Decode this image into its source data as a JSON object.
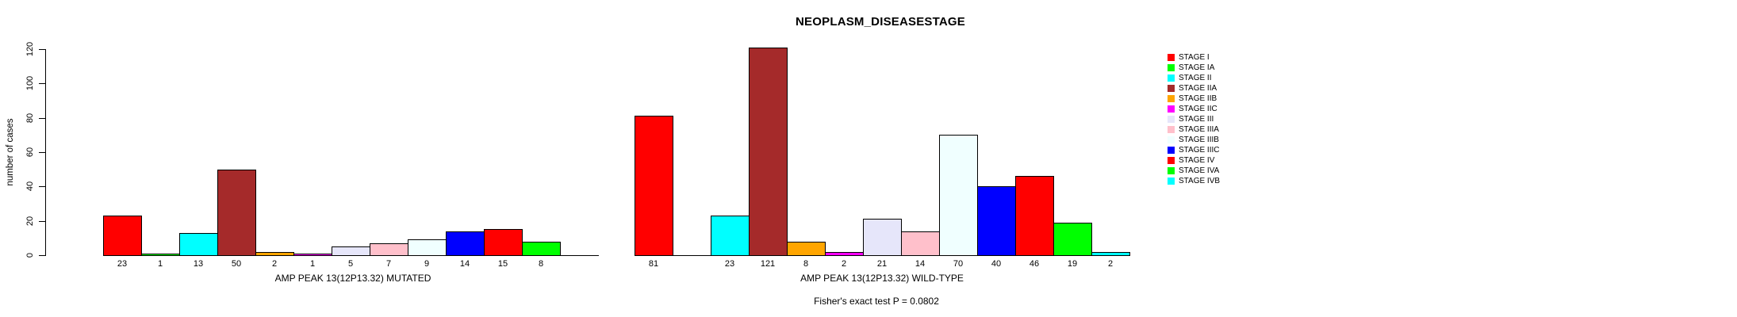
{
  "figure": {
    "title": "NEOPLASM_DISEASESTAGE",
    "ylabel": "number of cases",
    "footer": "Fisher's exact test P = 0.0802"
  },
  "legend": {
    "position": "right",
    "entries": [
      {
        "label": "STAGE I",
        "color": "#FF0000"
      },
      {
        "label": "STAGE IA",
        "color": "#00FF00"
      },
      {
        "label": "STAGE II",
        "color": "#00FFFF"
      },
      {
        "label": "STAGE IIA",
        "color": "#A52A2A"
      },
      {
        "label": "STAGE IIB",
        "color": "#FFA500"
      },
      {
        "label": "STAGE IIC",
        "color": "#FF00FF"
      },
      {
        "label": "STAGE III",
        "color": "#E6E6FA"
      },
      {
        "label": "STAGE IIIA",
        "color": "#FFC0CB"
      },
      {
        "label": "STAGE IIIB",
        "color": "#F0FFFF"
      },
      {
        "label": "STAGE IIIC",
        "color": "#0000FF"
      },
      {
        "label": "STAGE IV",
        "color": "#FF0000"
      },
      {
        "label": "STAGE IVA",
        "color": "#00FF00"
      },
      {
        "label": "STAGE IVB",
        "color": "#00FFFF"
      }
    ]
  },
  "chart_data": {
    "type": "bar",
    "title": "NEOPLASM_DISEASESTAGE",
    "ylabel": "number of cases",
    "xlabel": "",
    "ylim": [
      0,
      120
    ],
    "yticks": [
      0,
      20,
      40,
      60,
      80,
      100,
      120
    ],
    "grid": false,
    "legend_position": "right",
    "categories": [
      "STAGE I",
      "STAGE IA",
      "STAGE II",
      "STAGE IIA",
      "STAGE IIB",
      "STAGE IIC",
      "STAGE III",
      "STAGE IIIA",
      "STAGE IIIB",
      "STAGE IIIC",
      "STAGE IV",
      "STAGE IVA",
      "STAGE IVB"
    ],
    "colors": [
      "#FF0000",
      "#00FF00",
      "#00FFFF",
      "#A52A2A",
      "#FFA500",
      "#FF00FF",
      "#E6E6FA",
      "#FFC0CB",
      "#F0FFFF",
      "#0000FF",
      "#FF0000",
      "#00FF00",
      "#00FFFF"
    ],
    "series": [
      {
        "name": "AMP PEAK 13(12P13.32) MUTATED",
        "values": [
          23,
          1,
          13,
          50,
          2,
          1,
          5,
          7,
          9,
          14,
          15,
          8,
          0
        ]
      },
      {
        "name": "AMP PEAK 13(12P13.32) WILD-TYPE",
        "values": [
          81,
          0,
          23,
          121,
          8,
          2,
          21,
          14,
          70,
          40,
          46,
          19,
          2
        ]
      }
    ],
    "value_labels_under_bars": true,
    "zero_values_unlabeled": true,
    "annotation": "Fisher's exact test P = 0.0802"
  }
}
